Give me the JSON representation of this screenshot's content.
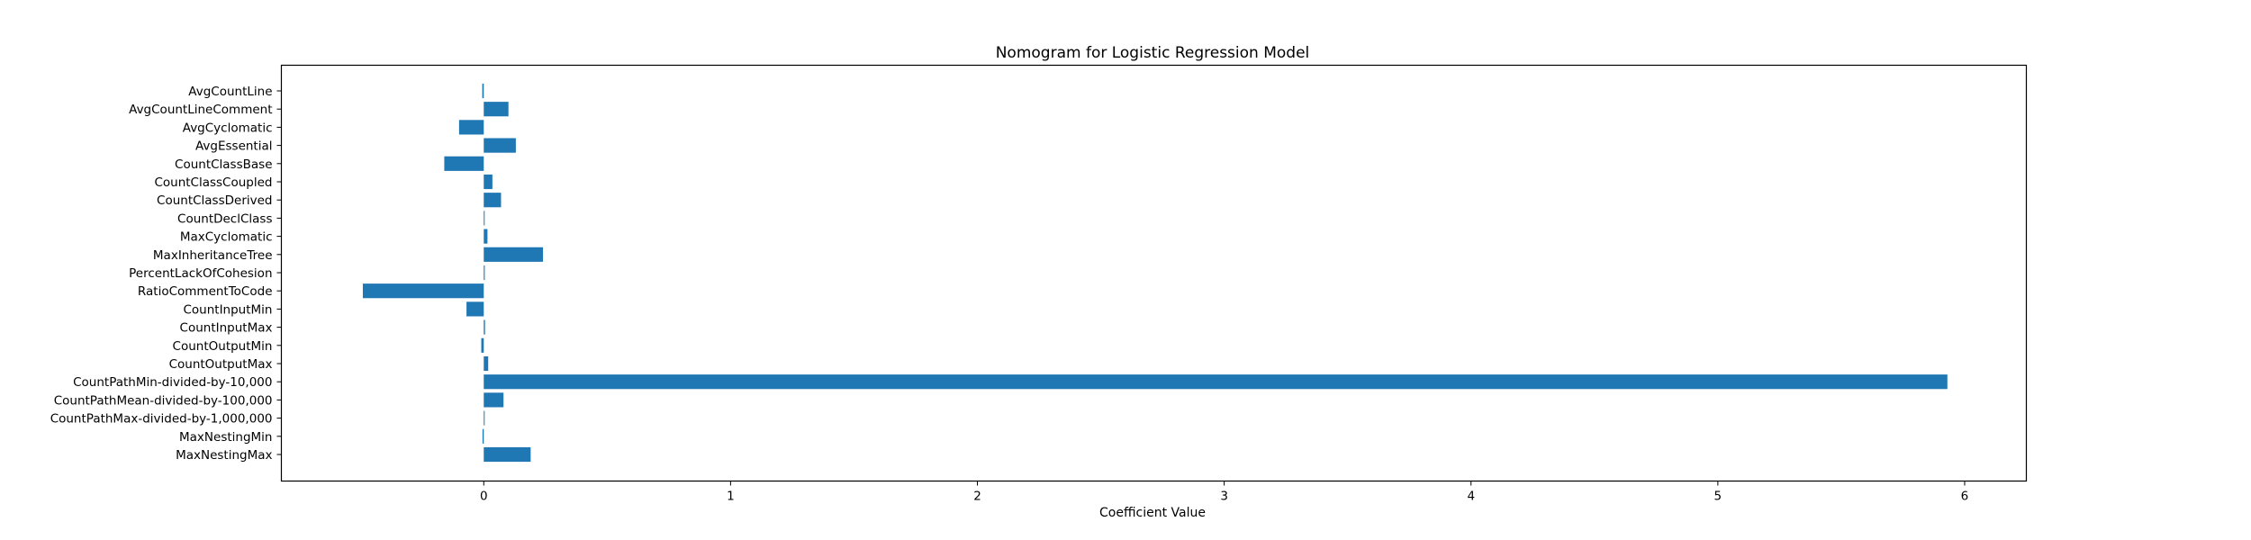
{
  "chart_data": {
    "type": "bar",
    "orientation": "horizontal",
    "title": "Nomogram for Logistic Regression Model",
    "xlabel": "Coefficient Value",
    "ylabel": "",
    "xlim": [
      -0.82,
      6.25
    ],
    "xticks": [
      0,
      1,
      2,
      3,
      4,
      5,
      6
    ],
    "grid": false,
    "bar_color": "#1f77b4",
    "categories": [
      "AvgCountLine",
      "AvgCountLineComment",
      "AvgCyclomatic",
      "AvgEssential",
      "CountClassBase",
      "CountClassCoupled",
      "CountClassDerived",
      "CountDeclClass",
      "MaxCyclomatic",
      "MaxInheritanceTree",
      "PercentLackOfCohesion",
      "RatioCommentToCode",
      "CountInputMin",
      "CountInputMax",
      "CountOutputMin",
      "CountOutputMax",
      "CountPathMin-divided-by-10,000",
      "CountPathMean-divided-by-100,000",
      "CountPathMax-divided-by-1,000,000",
      "MaxNestingMin",
      "MaxNestingMax"
    ],
    "values": [
      -0.006,
      0.1,
      -0.1,
      0.13,
      -0.16,
      0.035,
      0.07,
      0.003,
      0.015,
      0.24,
      0.004,
      -0.49,
      -0.07,
      0.005,
      -0.01,
      0.018,
      5.93,
      0.08,
      0.003,
      -0.005,
      0.19
    ]
  }
}
